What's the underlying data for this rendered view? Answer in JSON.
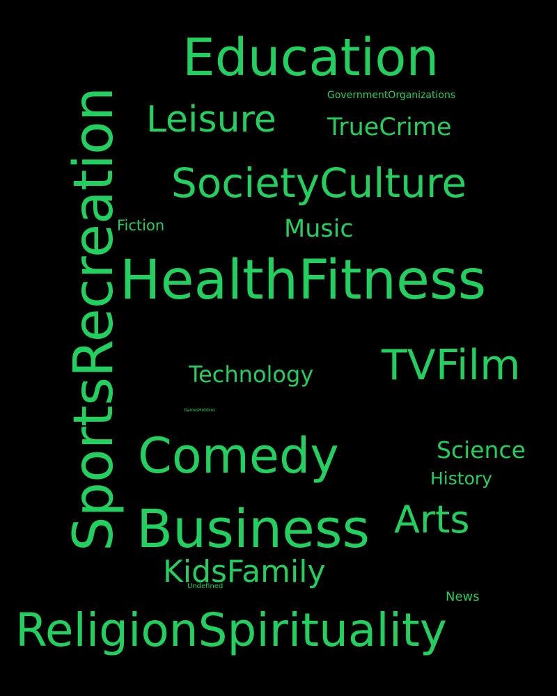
{
  "accent_color": "#22d05f",
  "background_color": "#000000",
  "words": {
    "sports_recreation": "SportsRecreation",
    "education": "Education",
    "government_organizations": "GovernmentOrganizations",
    "leisure": "Leisure",
    "true_crime": "TrueCrime",
    "society_culture": "SocietyCulture",
    "fiction": "Fiction",
    "music": "Music",
    "health_fitness": "HealthFitness",
    "technology": "Technology",
    "tv_film": "TVFilm",
    "games_hobbies": "GamesHobbies",
    "comedy": "Comedy",
    "science": "Science",
    "history": "History",
    "business": "Business",
    "arts": "Arts",
    "kids_family": "KidsFamily",
    "undefined": "Undefined",
    "news": "News",
    "religion_spirituality": "ReligionSpirituality"
  }
}
